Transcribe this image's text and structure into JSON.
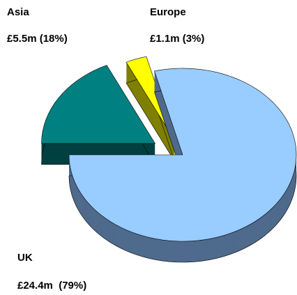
{
  "chart_data": {
    "type": "pie3d",
    "categories": [
      "UK",
      "Asia",
      "Europe"
    ],
    "values": [
      79,
      18,
      3
    ],
    "value_labels": [
      "£24.4m  (79%)",
      "£5.5m (18%)",
      "£1.1m (3%)"
    ],
    "colors": [
      "#99ccff",
      "#008080",
      "#ffff00"
    ],
    "side_colors": [
      "#4f6a8c",
      "#004040",
      "#808000"
    ]
  }
}
